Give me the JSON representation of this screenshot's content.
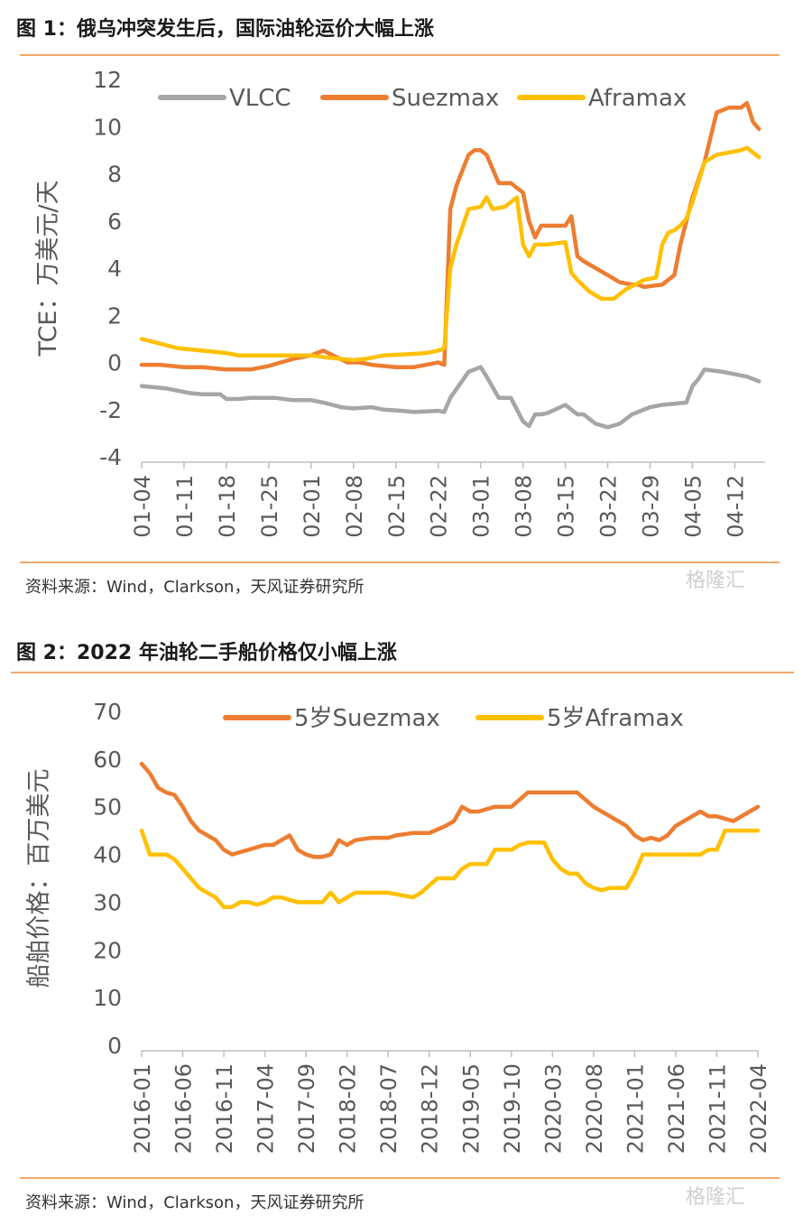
{
  "figures": [
    {
      "title": "图 1：俄乌冲突发生后，国际油轮运价大幅上涨",
      "source": "资料来源：Wind，Clarkson，天风证券研究所",
      "watermark": "格隆汇",
      "chart_data": {
        "type": "line",
        "title": "",
        "xlabel": "",
        "ylabel": "TCE：万美元/天",
        "ylim": [
          -4,
          12
        ],
        "yticks": [
          -4,
          -2,
          0,
          2,
          4,
          6,
          8,
          10,
          12
        ],
        "x_range": [
          0,
          103
        ],
        "tick_positions": [
          0,
          7,
          14,
          21,
          28,
          35,
          42,
          49,
          56,
          63,
          70,
          77,
          84,
          91,
          98
        ],
        "tick_labels": [
          "01-04",
          "01-11",
          "01-18",
          "01-25",
          "02-01",
          "02-08",
          "02-15",
          "02-22",
          "03-01",
          "03-08",
          "03-15",
          "03-22",
          "03-29",
          "04-05",
          "04-12"
        ],
        "legend_position": "top",
        "series": [
          {
            "name": "VLCC",
            "color": "#a6a6a6",
            "x": [
              0,
              4,
              8,
              10,
              13,
              14,
              16,
              18,
              20,
              22,
              25,
              28,
              30,
              33,
              35,
              38,
              40,
              43,
              45,
              49,
              50,
              51,
              54,
              56,
              57,
              59,
              61,
              63,
              64,
              65,
              66,
              67,
              70,
              72,
              73,
              75,
              77,
              79,
              81,
              84,
              86,
              90,
              91,
              92,
              93,
              96,
              98,
              100,
              101,
              102
            ],
            "y": [
              -1.0,
              -1.1,
              -1.3,
              -1.35,
              -1.35,
              -1.55,
              -1.55,
              -1.5,
              -1.5,
              -1.5,
              -1.6,
              -1.6,
              -1.7,
              -1.9,
              -1.95,
              -1.9,
              -2.0,
              -2.05,
              -2.1,
              -2.05,
              -2.1,
              -1.5,
              -0.4,
              -0.2,
              -0.6,
              -1.5,
              -1.5,
              -2.5,
              -2.7,
              -2.2,
              -2.2,
              -2.15,
              -1.8,
              -2.2,
              -2.2,
              -2.6,
              -2.75,
              -2.6,
              -2.2,
              -1.9,
              -1.8,
              -1.7,
              -1.0,
              -0.7,
              -0.3,
              -0.4,
              -0.5,
              -0.6,
              -0.7,
              -0.8
            ]
          },
          {
            "name": "Suezmax",
            "color": "#ed7d31",
            "x": [
              0,
              3,
              7,
              10,
              14,
              16,
              18,
              21,
              25,
              28,
              30,
              34,
              36,
              38,
              42,
              45,
              48,
              49,
              50,
              51,
              52,
              54,
              55,
              56,
              57,
              59,
              61,
              63,
              64,
              65,
              66,
              67,
              70,
              71,
              72,
              73,
              75,
              77,
              79,
              81,
              82,
              83,
              86,
              88,
              89,
              91,
              93,
              95,
              97,
              98,
              99,
              100,
              101,
              102
            ],
            "y": [
              -0.1,
              -0.1,
              -0.2,
              -0.2,
              -0.3,
              -0.3,
              -0.3,
              -0.15,
              0.15,
              0.3,
              0.5,
              0.0,
              0.0,
              -0.1,
              -0.2,
              -0.2,
              -0.05,
              0.0,
              -0.1,
              6.5,
              7.5,
              8.8,
              9.0,
              9.0,
              8.8,
              7.6,
              7.6,
              7.2,
              6.0,
              5.3,
              5.8,
              5.8,
              5.8,
              6.2,
              4.5,
              4.3,
              4.0,
              3.7,
              3.4,
              3.3,
              3.3,
              3.2,
              3.3,
              3.7,
              5.0,
              7.0,
              8.5,
              10.6,
              10.8,
              10.8,
              10.8,
              11.0,
              10.2,
              9.9
            ]
          },
          {
            "name": "Aframax",
            "color": "#ffc000",
            "x": [
              0,
              3,
              6,
              10,
              14,
              16,
              18,
              21,
              25,
              28,
              31,
              35,
              37,
              40,
              44,
              47,
              49,
              50,
              51,
              52,
              54,
              56,
              57,
              58,
              60,
              62,
              63,
              64,
              65,
              67,
              70,
              71,
              72,
              74,
              76,
              78,
              80,
              83,
              85,
              86,
              87,
              88,
              89,
              90,
              91,
              93,
              95,
              97,
              99,
              100,
              101,
              102
            ],
            "y": [
              1.0,
              0.8,
              0.6,
              0.5,
              0.4,
              0.3,
              0.3,
              0.3,
              0.3,
              0.3,
              0.2,
              0.1,
              0.15,
              0.3,
              0.35,
              0.4,
              0.5,
              0.6,
              4.0,
              5.0,
              6.5,
              6.6,
              7.0,
              6.5,
              6.6,
              7.0,
              5.0,
              4.5,
              5.0,
              5.0,
              5.1,
              3.8,
              3.5,
              3.0,
              2.7,
              2.7,
              3.1,
              3.5,
              3.6,
              5.0,
              5.5,
              5.6,
              5.8,
              6.1,
              6.8,
              8.5,
              8.8,
              8.9,
              9.0,
              9.1,
              8.9,
              8.7
            ]
          }
        ]
      }
    },
    {
      "title": "图 2：2022 年油轮二手船价格仅小幅上涨",
      "source": "资料来源：Wind，Clarkson，天风证券研究所",
      "watermark": "格隆汇",
      "chart_data": {
        "type": "line",
        "title": "",
        "xlabel": "",
        "ylabel": "船舶价格：百万美元",
        "ylim": [
          0,
          70
        ],
        "yticks": [
          0,
          10,
          20,
          30,
          40,
          50,
          60,
          70
        ],
        "x_range": [
          0,
          75
        ],
        "tick_positions": [
          0,
          5,
          10,
          15,
          20,
          25,
          30,
          35,
          40,
          45,
          50,
          55,
          60,
          65,
          70,
          75
        ],
        "tick_labels": [
          "2016-01",
          "2016-06",
          "2016-11",
          "2017-04",
          "2017-09",
          "2018-02",
          "2018-07",
          "2018-12",
          "2019-05",
          "2019-10",
          "2020-03",
          "2020-08",
          "2021-01",
          "2021-06",
          "2021-11",
          "2022-04"
        ],
        "legend_position": "top",
        "series": [
          {
            "name": "5岁Suezmax",
            "color": "#ed7d31",
            "x": [
              0,
              1,
              2,
              3,
              4,
              5,
              6,
              7,
              8,
              9,
              10,
              11,
              12,
              13,
              14,
              15,
              16,
              17,
              18,
              19,
              20,
              21,
              22,
              23,
              24,
              25,
              26,
              28,
              30,
              31,
              33,
              35,
              37,
              38,
              39,
              40,
              41,
              43,
              45,
              47,
              50,
              51,
              53,
              55,
              57,
              58,
              59,
              60,
              61,
              62,
              63,
              64,
              65,
              66,
              67,
              68,
              69,
              70,
              71,
              72,
              73,
              74,
              75
            ],
            "y": [
              59,
              57,
              54,
              53,
              52.5,
              50,
              47,
              45,
              44,
              43,
              41,
              40,
              40.5,
              41,
              41.5,
              42,
              42,
              43,
              44,
              41,
              40,
              39.5,
              39.5,
              40,
              43,
              42,
              43,
              43.5,
              43.5,
              44,
              44.5,
              44.5,
              46,
              47,
              50,
              49,
              49,
              50,
              50,
              53,
              53,
              53,
              53,
              50,
              48,
              47,
              46,
              44,
              43,
              43.5,
              43,
              44,
              46,
              47,
              48,
              49,
              48,
              48,
              47.5,
              47,
              48,
              49,
              50
            ]
          },
          {
            "name": "5岁Aframax",
            "color": "#ffc000",
            "x": [
              0,
              1,
              2,
              3,
              4,
              5,
              6,
              7,
              8,
              9,
              10,
              11,
              12,
              13,
              14,
              15,
              16,
              17,
              18,
              19,
              20,
              21,
              22,
              23,
              24,
              25,
              26,
              27,
              28,
              30,
              33,
              34,
              35,
              36,
              37,
              38,
              39,
              40,
              41,
              42,
              43,
              44,
              45,
              46,
              47,
              48,
              49,
              50,
              51,
              52,
              53,
              54,
              55,
              56,
              57,
              58,
              59,
              60,
              61,
              62,
              63,
              64,
              65,
              66,
              67,
              68,
              69,
              70,
              71,
              72,
              73,
              74,
              75
            ],
            "y": [
              45,
              40,
              40,
              40,
              39,
              37,
              35,
              33,
              32,
              31,
              29,
              29,
              30,
              30,
              29.5,
              30,
              31,
              31,
              30.5,
              30,
              30,
              30,
              30,
              32,
              30,
              31,
              32,
              32,
              32,
              32,
              31,
              32,
              33.5,
              35,
              35,
              35,
              37,
              38,
              38,
              38,
              41,
              41,
              41,
              42,
              42.5,
              42.5,
              42.5,
              39,
              37,
              36,
              36,
              34,
              33,
              32.5,
              33,
              33,
              33,
              36,
              40,
              40,
              40,
              40,
              40,
              40,
              40,
              40,
              41,
              41,
              45,
              45,
              45,
              45,
              45
            ]
          }
        ]
      }
    }
  ]
}
